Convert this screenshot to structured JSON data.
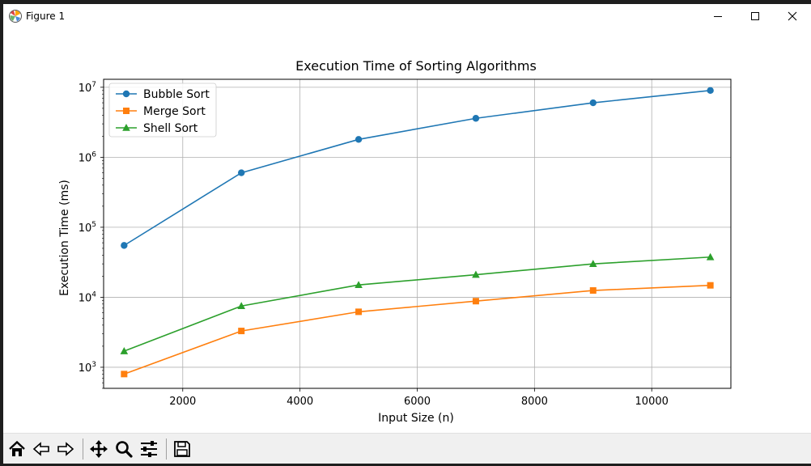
{
  "window": {
    "title": "Figure 1"
  },
  "toolbar": {
    "buttons": [
      {
        "icon": "home-icon"
      },
      {
        "icon": "back-arrow-icon"
      },
      {
        "icon": "forward-arrow-icon"
      },
      {
        "icon": "pan-icon"
      },
      {
        "icon": "zoom-icon"
      },
      {
        "icon": "configure-subplots-icon"
      },
      {
        "icon": "save-icon"
      }
    ]
  },
  "chart_data": {
    "type": "line",
    "title": "Execution Time of Sorting Algorithms",
    "xlabel": "Input Size (n)",
    "ylabel": "Execution Time (ms)",
    "yscale": "log",
    "xlim": [
      650,
      11350
    ],
    "ylim": [
      500,
      13000000
    ],
    "xticks": [
      2000,
      4000,
      6000,
      8000,
      10000
    ],
    "xtick_labels": [
      "2000",
      "4000",
      "6000",
      "8000",
      "10000"
    ],
    "yticks": [
      1000,
      10000,
      100000,
      1000000,
      10000000
    ],
    "ytick_base": "10",
    "ytick_exponents": [
      "3",
      "4",
      "5",
      "6",
      "7"
    ],
    "grid": true,
    "legend_position": "upper-left",
    "x": [
      1000,
      3000,
      5000,
      7000,
      9000,
      11000
    ],
    "series": [
      {
        "name": "Bubble Sort",
        "color": "#1f77b4",
        "marker": "circle",
        "values": [
          55000,
          600000,
          1800000,
          3600000,
          6000000,
          9000000
        ]
      },
      {
        "name": "Merge Sort",
        "color": "#ff7f0e",
        "marker": "square",
        "values": [
          800,
          3300,
          6200,
          8800,
          12500,
          14800
        ]
      },
      {
        "name": "Shell Sort",
        "color": "#2ca02c",
        "marker": "triangle",
        "values": [
          1700,
          7500,
          15000,
          21000,
          30000,
          37500
        ]
      }
    ]
  }
}
